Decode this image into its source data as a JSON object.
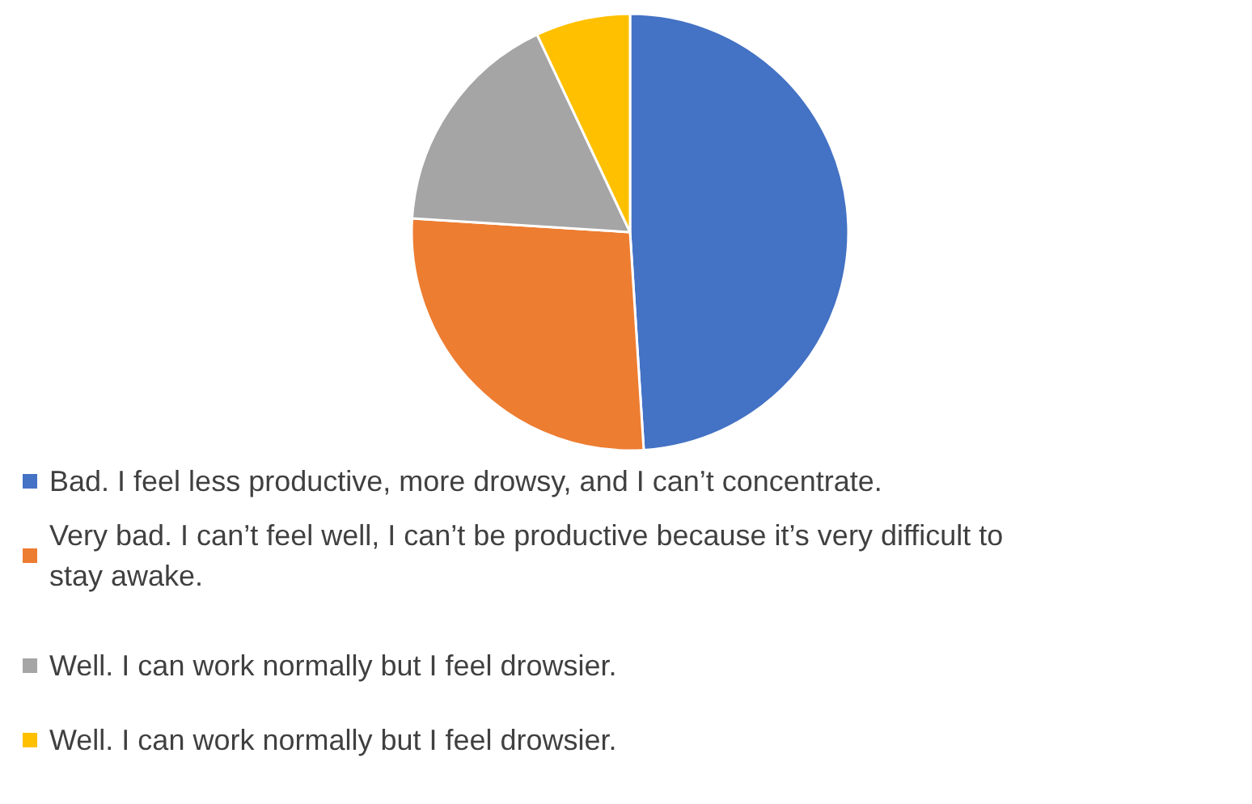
{
  "chart_data": {
    "type": "pie",
    "categories": [
      "Bad. I feel less productive, more drowsy, and I can’t concentrate.",
      "Very bad. I can’t feel well, I can’t be productive because it’s very difficult to stay awake.",
      "Well. I can work normally but I feel drowsier.",
      "Well. I can work normally but I feel drowsier."
    ],
    "values": [
      49,
      27,
      17,
      7
    ],
    "colors": [
      "#4472c4",
      "#ed7d31",
      "#a5a5a5",
      "#ffc000"
    ],
    "legend": "bottom"
  }
}
